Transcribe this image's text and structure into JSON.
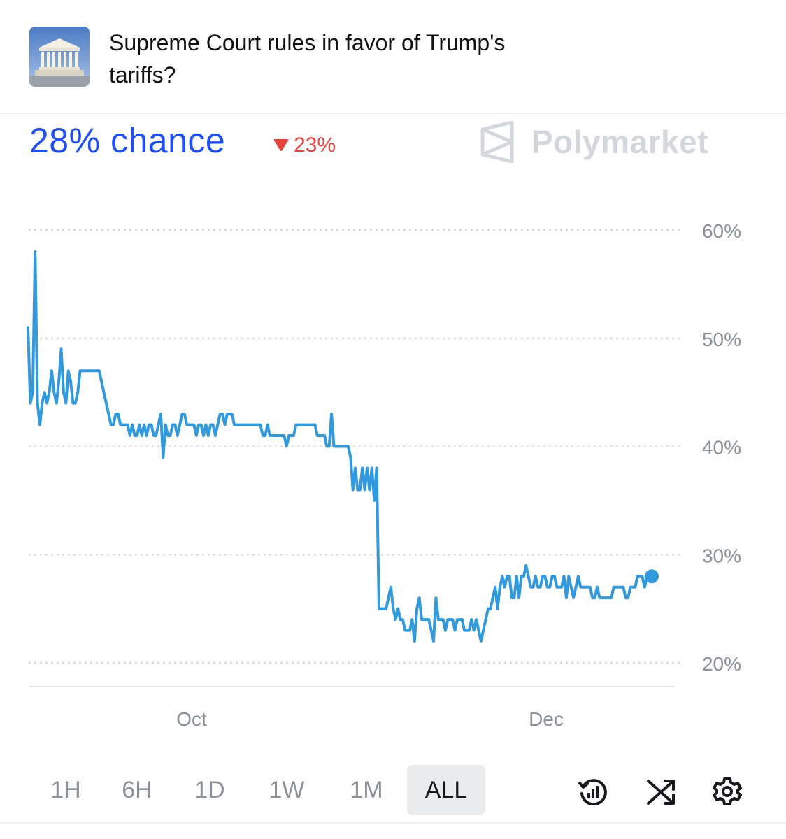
{
  "market": {
    "title": "Supreme Court rules in favor of Trump's tariffs?",
    "chance_label": "28% chance",
    "change_label": "23%",
    "change_direction": "down",
    "brand": "Polymarket"
  },
  "colors": {
    "accent": "#1f4ff0",
    "line": "#3399dd",
    "down": "#e5443c"
  },
  "chart_data": {
    "type": "line",
    "x_tick_labels": [
      "Oct",
      "Dec"
    ],
    "y_tick_labels": [
      "60%",
      "50%",
      "40%",
      "30%",
      "20%"
    ],
    "y_ticks": [
      60,
      50,
      40,
      30,
      20
    ],
    "ylim": [
      18,
      62
    ],
    "grid": true,
    "series": [
      {
        "values": [
          51,
          44,
          45,
          58,
          44,
          42,
          44,
          45,
          44,
          45,
          47,
          45,
          44,
          46,
          49,
          45,
          44,
          47,
          46,
          44,
          44,
          45,
          47,
          47,
          47,
          47,
          47,
          47,
          47,
          47,
          47,
          46,
          45,
          44,
          43,
          42,
          42,
          43,
          43,
          42,
          42,
          42,
          42,
          41,
          42,
          41,
          41,
          42,
          41,
          42,
          41,
          42,
          42,
          41,
          41,
          42,
          43,
          39,
          42,
          41,
          41,
          42,
          42,
          41,
          42,
          43,
          43,
          42,
          42,
          42,
          42,
          41,
          42,
          42,
          41,
          42,
          41,
          42,
          42,
          41,
          42,
          43,
          43,
          42,
          43,
          43,
          43,
          42,
          42,
          42,
          42,
          42,
          42,
          42,
          42,
          42,
          42,
          42,
          42,
          41,
          41,
          42,
          41,
          41,
          41,
          41,
          41,
          41,
          41,
          40,
          41,
          41,
          41,
          42,
          42,
          42,
          42,
          42,
          42,
          42,
          42,
          42,
          41,
          41,
          41,
          41,
          40,
          40,
          43,
          40,
          40,
          40,
          40,
          40,
          40,
          40,
          39,
          36,
          38,
          36,
          36,
          38,
          36,
          38,
          36,
          38,
          35,
          38,
          25,
          25,
          25,
          25,
          26,
          27,
          25,
          24,
          25,
          24,
          24,
          23,
          23,
          23,
          24,
          22,
          25,
          26,
          24,
          24,
          24,
          24,
          23,
          22,
          26,
          24,
          24,
          24,
          23,
          24,
          24,
          24,
          23,
          24,
          24,
          24,
          23,
          23,
          23,
          24,
          23,
          24,
          23,
          22,
          23,
          24,
          25,
          25,
          26,
          27,
          25,
          27,
          28,
          27,
          28,
          28,
          26,
          26,
          28,
          26,
          28,
          28,
          29,
          28,
          27,
          27,
          28,
          27,
          27,
          28,
          28,
          27,
          27,
          28,
          28,
          27,
          27,
          27,
          28,
          26,
          28,
          27,
          26,
          27,
          28,
          27,
          27,
          27,
          27,
          27,
          26,
          26,
          27,
          26,
          26,
          26,
          26,
          26,
          26,
          27,
          27,
          27,
          27,
          27,
          26,
          26,
          27,
          27,
          27,
          28,
          28,
          28,
          27,
          28,
          28,
          28
        ]
      }
    ]
  },
  "timeframes": [
    "1H",
    "6H",
    "1D",
    "1W",
    "1M",
    "ALL"
  ],
  "active_timeframe": "ALL",
  "toolbar": {
    "icons": [
      "history-chart-icon",
      "shuffle-icon",
      "gear-icon"
    ]
  }
}
